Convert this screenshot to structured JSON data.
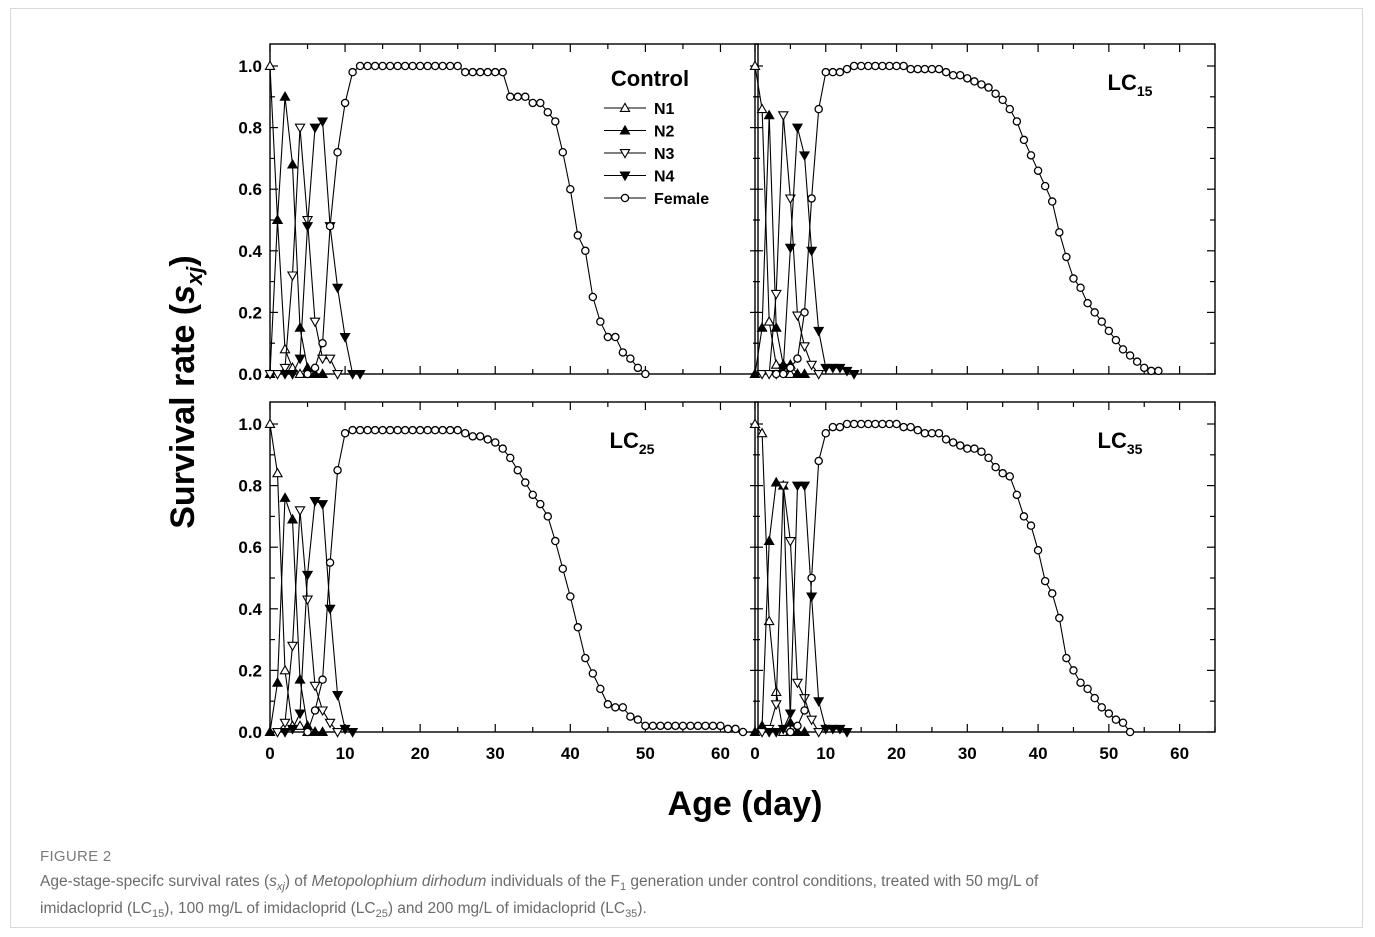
{
  "figure": {
    "y_axis_title_main": "Survival rate (",
    "y_axis_symbol": "s",
    "y_axis_subscript": "xj",
    "y_axis_close": ")",
    "x_axis_title": "Age (day)"
  },
  "caption": {
    "label": "FIGURE 2",
    "line1_a": "Age-stage-specifc survival rates (",
    "line1_sym": "s",
    "line1_sub": "xj",
    "line1_b": ") of ",
    "line1_species": "Metopolophium dirhodum",
    "line1_c": " individuals of the F",
    "line1_c_sub": "1",
    "line1_d": " generation under control conditions, treated with 50 mg/L of",
    "line2_a": "imidacloprid (LC",
    "line2_a_sub": "15",
    "line2_b": "), 100 mg/L of imidacloprid (LC",
    "line2_b_sub": "25",
    "line2_c": ") and 200 mg/L of imidacloprid (LC",
    "line2_c_sub": "35",
    "line2_d": ")."
  },
  "legend": {
    "entries": [
      {
        "label": "N1",
        "marker": "triangle-up-open"
      },
      {
        "label": "N2",
        "marker": "triangle-up-filled"
      },
      {
        "label": "N3",
        "marker": "triangle-down-open"
      },
      {
        "label": "N4",
        "marker": "triangle-down-filled"
      },
      {
        "label": "Female",
        "marker": "circle-open"
      }
    ]
  },
  "chart_data": [
    {
      "type": "line",
      "title": "Control",
      "title_sub": "",
      "xlim": [
        0,
        65
      ],
      "ylim": [
        0,
        1.0
      ],
      "xticks": [
        0,
        10,
        20,
        30,
        40,
        50,
        60
      ],
      "yticks": [
        "0.0",
        "0.2",
        "0.4",
        "0.6",
        "0.8",
        "1.0"
      ],
      "series": [
        {
          "name": "N1",
          "x": [
            0,
            1,
            2,
            3,
            4,
            5,
            6
          ],
          "y": [
            1.0,
            0.5,
            0.08,
            0.02,
            0.0,
            0.0,
            0.0
          ]
        },
        {
          "name": "N2",
          "x": [
            0,
            1,
            2,
            3,
            4,
            5,
            6,
            7
          ],
          "y": [
            0.0,
            0.5,
            0.9,
            0.68,
            0.15,
            0.02,
            0.0,
            0.0
          ]
        },
        {
          "name": "N3",
          "x": [
            0,
            1,
            2,
            3,
            4,
            5,
            6,
            7,
            8,
            9
          ],
          "y": [
            0.0,
            0.0,
            0.02,
            0.32,
            0.8,
            0.5,
            0.17,
            0.05,
            0.05,
            0.0
          ]
        },
        {
          "name": "N4",
          "x": [
            2,
            3,
            4,
            5,
            6,
            7,
            8,
            9,
            10,
            11,
            12
          ],
          "y": [
            0.0,
            0.0,
            0.05,
            0.48,
            0.8,
            0.82,
            0.48,
            0.28,
            0.12,
            0.0,
            0.0
          ]
        },
        {
          "name": "Female",
          "x": [
            5,
            6,
            7,
            8,
            9,
            10,
            11,
            12,
            13,
            14,
            15,
            16,
            17,
            18,
            19,
            20,
            21,
            22,
            23,
            24,
            25,
            26,
            27,
            28,
            29,
            30,
            31,
            32,
            33,
            34,
            35,
            36,
            37,
            38,
            39,
            40,
            41,
            42,
            43,
            44,
            45,
            46,
            47,
            48,
            49,
            50
          ],
          "y": [
            0.0,
            0.02,
            0.1,
            0.48,
            0.72,
            0.88,
            0.98,
            1.0,
            1.0,
            1.0,
            1.0,
            1.0,
            1.0,
            1.0,
            1.0,
            1.0,
            1.0,
            1.0,
            1.0,
            1.0,
            1.0,
            0.98,
            0.98,
            0.98,
            0.98,
            0.98,
            0.98,
            0.9,
            0.9,
            0.9,
            0.88,
            0.88,
            0.85,
            0.82,
            0.72,
            0.6,
            0.45,
            0.4,
            0.25,
            0.17,
            0.12,
            0.12,
            0.07,
            0.05,
            0.02,
            0.0
          ]
        }
      ]
    },
    {
      "type": "line",
      "title": "LC",
      "title_sub": "15",
      "xlim": [
        0,
        65
      ],
      "ylim": [
        0,
        1.0
      ],
      "xticks": [
        0,
        10,
        20,
        30,
        40,
        50,
        60
      ],
      "yticks": [
        "0.0",
        "0.2",
        "0.4",
        "0.6",
        "0.8",
        "1.0"
      ],
      "series": [
        {
          "name": "N1",
          "x": [
            0,
            1,
            2,
            3,
            4,
            5,
            6
          ],
          "y": [
            1.0,
            0.86,
            0.17,
            0.03,
            0.02,
            0.0,
            0.0
          ]
        },
        {
          "name": "N2",
          "x": [
            0,
            1,
            2,
            3,
            4,
            5,
            6,
            7
          ],
          "y": [
            0.0,
            0.15,
            0.84,
            0.15,
            0.03,
            0.03,
            0.0,
            0.0
          ]
        },
        {
          "name": "N3",
          "x": [
            1,
            2,
            3,
            4,
            5,
            6,
            7,
            8,
            9
          ],
          "y": [
            0.0,
            0.0,
            0.26,
            0.84,
            0.57,
            0.19,
            0.09,
            0.03,
            0.0
          ]
        },
        {
          "name": "N4",
          "x": [
            3,
            4,
            5,
            6,
            7,
            8,
            9,
            10,
            11,
            12,
            13,
            14
          ],
          "y": [
            0.0,
            0.02,
            0.41,
            0.8,
            0.71,
            0.4,
            0.14,
            0.02,
            0.02,
            0.02,
            0.01,
            0.0
          ]
        },
        {
          "name": "Female",
          "x": [
            3,
            4,
            5,
            6,
            7,
            8,
            9,
            10,
            11,
            12,
            13,
            14,
            15,
            16,
            17,
            18,
            19,
            20,
            21,
            22,
            23,
            24,
            25,
            26,
            27,
            28,
            29,
            30,
            31,
            32,
            33,
            34,
            35,
            36,
            37,
            38,
            39,
            40,
            41,
            42,
            43,
            44,
            45,
            46,
            47,
            48,
            49,
            50,
            51,
            52,
            53,
            54,
            55,
            56,
            57
          ],
          "y": [
            0.0,
            0.0,
            0.02,
            0.05,
            0.2,
            0.57,
            0.86,
            0.98,
            0.98,
            0.98,
            0.99,
            1.0,
            1.0,
            1.0,
            1.0,
            1.0,
            1.0,
            1.0,
            1.0,
            0.99,
            0.99,
            0.99,
            0.99,
            0.99,
            0.98,
            0.97,
            0.97,
            0.96,
            0.95,
            0.94,
            0.93,
            0.91,
            0.89,
            0.86,
            0.82,
            0.76,
            0.71,
            0.66,
            0.61,
            0.56,
            0.46,
            0.38,
            0.31,
            0.28,
            0.23,
            0.2,
            0.17,
            0.14,
            0.11,
            0.08,
            0.06,
            0.04,
            0.02,
            0.01,
            0.01
          ]
        }
      ]
    },
    {
      "type": "line",
      "title": "LC",
      "title_sub": "25",
      "xlim": [
        0,
        65
      ],
      "ylim": [
        0,
        1.0
      ],
      "xticks": [
        0,
        10,
        20,
        30,
        40,
        50,
        60
      ],
      "yticks": [
        "0.0",
        "0.2",
        "0.4",
        "0.6",
        "0.8",
        "1.0"
      ],
      "series": [
        {
          "name": "N1",
          "x": [
            0,
            1,
            2,
            3,
            4,
            5,
            6
          ],
          "y": [
            1.0,
            0.84,
            0.2,
            0.02,
            0.02,
            0.0,
            0.0
          ]
        },
        {
          "name": "N2",
          "x": [
            0,
            1,
            2,
            3,
            4,
            5,
            6,
            7
          ],
          "y": [
            0.0,
            0.16,
            0.76,
            0.69,
            0.17,
            0.02,
            0.0,
            0.0
          ]
        },
        {
          "name": "N3",
          "x": [
            1,
            2,
            3,
            4,
            5,
            6,
            7,
            8,
            9
          ],
          "y": [
            0.0,
            0.03,
            0.28,
            0.72,
            0.43,
            0.15,
            0.07,
            0.03,
            0.0
          ]
        },
        {
          "name": "N4",
          "x": [
            2,
            3,
            4,
            5,
            6,
            7,
            8,
            9,
            10,
            11
          ],
          "y": [
            0.0,
            0.01,
            0.06,
            0.51,
            0.75,
            0.74,
            0.4,
            0.12,
            0.01,
            0.0
          ]
        },
        {
          "name": "Female",
          "x": [
            5,
            6,
            7,
            8,
            9,
            10,
            11,
            12,
            13,
            14,
            15,
            16,
            17,
            18,
            19,
            20,
            21,
            22,
            23,
            24,
            25,
            26,
            27,
            28,
            29,
            30,
            31,
            32,
            33,
            34,
            35,
            36,
            37,
            38,
            39,
            40,
            41,
            42,
            43,
            44,
            45,
            46,
            47,
            48,
            49,
            50,
            51,
            52,
            53,
            54,
            55,
            56,
            57,
            58,
            59,
            60,
            61,
            62,
            63
          ],
          "y": [
            0.0,
            0.07,
            0.17,
            0.55,
            0.85,
            0.97,
            0.98,
            0.98,
            0.98,
            0.98,
            0.98,
            0.98,
            0.98,
            0.98,
            0.98,
            0.98,
            0.98,
            0.98,
            0.98,
            0.98,
            0.98,
            0.97,
            0.96,
            0.96,
            0.95,
            0.94,
            0.92,
            0.89,
            0.85,
            0.81,
            0.77,
            0.74,
            0.7,
            0.62,
            0.53,
            0.44,
            0.34,
            0.24,
            0.19,
            0.14,
            0.09,
            0.08,
            0.08,
            0.05,
            0.04,
            0.02,
            0.02,
            0.02,
            0.02,
            0.02,
            0.02,
            0.02,
            0.02,
            0.02,
            0.02,
            0.02,
            0.01,
            0.01,
            0.0
          ]
        }
      ]
    },
    {
      "type": "line",
      "title": "LC",
      "title_sub": "35",
      "xlim": [
        0,
        65
      ],
      "ylim": [
        0,
        1.0
      ],
      "xticks": [
        0,
        10,
        20,
        30,
        40,
        50,
        60
      ],
      "yticks": [
        "0.0",
        "0.2",
        "0.4",
        "0.6",
        "0.8",
        "1.0"
      ],
      "series": [
        {
          "name": "N1",
          "x": [
            0,
            1,
            2,
            3,
            4,
            5,
            6
          ],
          "y": [
            1.0,
            0.97,
            0.36,
            0.13,
            0.0,
            0.0,
            0.0
          ]
        },
        {
          "name": "N2",
          "x": [
            0,
            1,
            2,
            3,
            4,
            5,
            6,
            7
          ],
          "y": [
            0.0,
            0.02,
            0.62,
            0.81,
            0.8,
            0.03,
            0.0,
            0.0
          ]
        },
        {
          "name": "N3",
          "x": [
            1,
            2,
            3,
            4,
            5,
            6,
            7,
            8,
            9
          ],
          "y": [
            0.0,
            0.01,
            0.09,
            0.8,
            0.62,
            0.16,
            0.11,
            0.04,
            0.0
          ]
        },
        {
          "name": "N4",
          "x": [
            2,
            3,
            4,
            5,
            6,
            7,
            8,
            9,
            10,
            11,
            12,
            13
          ],
          "y": [
            0.0,
            0.0,
            0.01,
            0.06,
            0.8,
            0.8,
            0.44,
            0.1,
            0.01,
            0.01,
            0.01,
            0.0
          ]
        },
        {
          "name": "Female",
          "x": [
            5,
            6,
            7,
            8,
            9,
            10,
            11,
            12,
            13,
            14,
            15,
            16,
            17,
            18,
            19,
            20,
            21,
            22,
            23,
            24,
            25,
            26,
            27,
            28,
            29,
            30,
            31,
            32,
            33,
            34,
            35,
            36,
            37,
            38,
            39,
            40,
            41,
            42,
            43,
            44,
            45,
            46,
            47,
            48,
            49,
            50,
            51,
            52,
            53
          ],
          "y": [
            0.0,
            0.02,
            0.07,
            0.5,
            0.88,
            0.97,
            0.99,
            0.99,
            1.0,
            1.0,
            1.0,
            1.0,
            1.0,
            1.0,
            1.0,
            1.0,
            0.99,
            0.99,
            0.98,
            0.97,
            0.97,
            0.97,
            0.95,
            0.94,
            0.93,
            0.92,
            0.92,
            0.91,
            0.89,
            0.86,
            0.84,
            0.83,
            0.77,
            0.7,
            0.67,
            0.59,
            0.49,
            0.45,
            0.37,
            0.24,
            0.2,
            0.16,
            0.14,
            0.11,
            0.08,
            0.06,
            0.04,
            0.03,
            0.0
          ]
        }
      ]
    }
  ]
}
